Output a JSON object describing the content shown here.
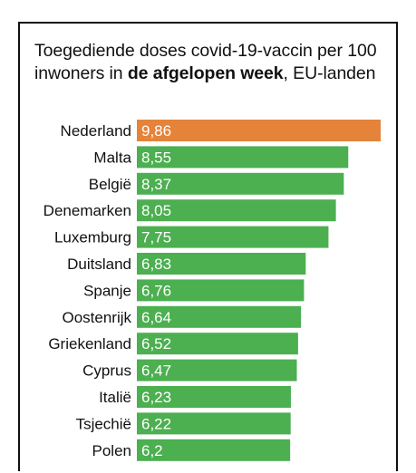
{
  "title_parts": {
    "before": "Toegediende doses covid-19-vaccin per 100 inwoners in ",
    "bold": "de afgelopen week",
    "after": ", EU-landen"
  },
  "colors": {
    "highlight": "#e5833a",
    "bar": "#4caf50",
    "label": "#111111",
    "value": "#ffffff"
  },
  "chart_data": {
    "type": "bar",
    "orientation": "horizontal",
    "title": "Toegediende doses covid-19-vaccin per 100 inwoners in de afgelopen week, EU-landen",
    "categories": [
      "Nederland",
      "Malta",
      "België",
      "Denemarken",
      "Luxemburg",
      "Duitsland",
      "Spanje",
      "Oostenrijk",
      "Griekenland",
      "Cyprus",
      "Italië",
      "Tsjechië",
      "Polen"
    ],
    "values": [
      9.86,
      8.55,
      8.37,
      8.05,
      7.75,
      6.83,
      6.76,
      6.64,
      6.52,
      6.47,
      6.23,
      6.22,
      6.2
    ],
    "value_labels": [
      "9,86",
      "8,55",
      "8,37",
      "8,05",
      "7,75",
      "6,83",
      "6,76",
      "6,64",
      "6,52",
      "6,47",
      "6,23",
      "6,22",
      "6,2"
    ],
    "highlight_category": "Nederland",
    "xlim": [
      0,
      9.86
    ],
    "grid": false,
    "legend": "none"
  }
}
